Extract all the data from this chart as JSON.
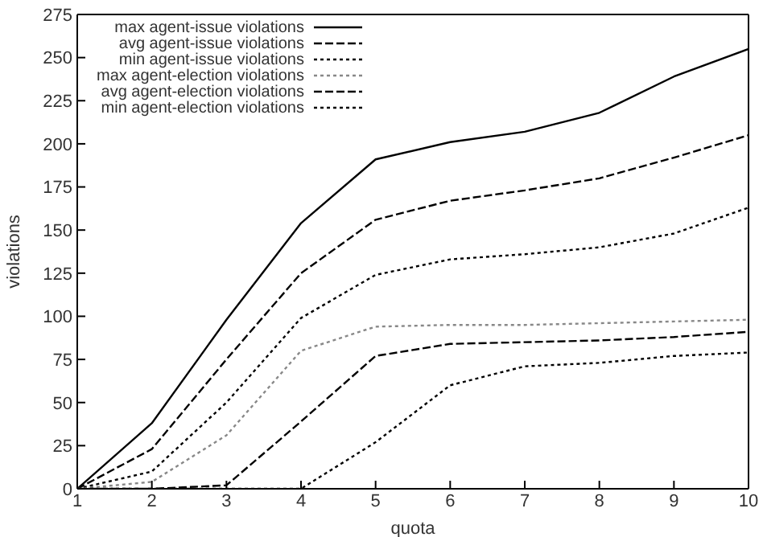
{
  "chart_data": {
    "type": "line",
    "xlabel": "quota",
    "ylabel": "violations",
    "x": [
      1,
      2,
      3,
      4,
      5,
      6,
      7,
      8,
      9,
      10
    ],
    "xlim": [
      1,
      10
    ],
    "xticks": [
      1,
      2,
      3,
      4,
      5,
      6,
      7,
      8,
      9,
      10
    ],
    "ylim": [
      0,
      275
    ],
    "yticks": [
      0,
      25,
      50,
      75,
      100,
      125,
      150,
      175,
      200,
      225,
      250,
      275
    ],
    "grid": false,
    "legend": "top left",
    "marker": "none",
    "series": [
      {
        "name": "max agent-issue violations",
        "color": "#000000",
        "line_style": "solid",
        "values": [
          0,
          38,
          98,
          154,
          191,
          201,
          207,
          218,
          239,
          255
        ]
      },
      {
        "name": "avg agent-issue violations",
        "color": "#000000",
        "line_style": "dashed",
        "values": [
          0,
          23,
          75,
          125,
          156,
          167,
          173,
          180,
          192,
          205
        ]
      },
      {
        "name": "min agent-issue violations",
        "color": "#000000",
        "line_style": "dotted",
        "values": [
          0,
          10,
          50,
          99,
          124,
          133,
          136,
          140,
          148,
          163
        ]
      },
      {
        "name": "max agent-election violations",
        "color": "#888888",
        "line_style": "dotted",
        "values": [
          0,
          4,
          31,
          80,
          94,
          95,
          95,
          96,
          97,
          98
        ]
      },
      {
        "name": "avg agent-election violations",
        "color": "#000000",
        "line_style": "dashed",
        "values": [
          0,
          0,
          2,
          39,
          77,
          84,
          85,
          86,
          88,
          91
        ]
      },
      {
        "name": "min agent-election violations",
        "color": "#000000",
        "line_style": "dotted",
        "values": [
          0,
          0,
          0,
          0,
          27,
          60,
          71,
          73,
          77,
          79
        ]
      }
    ]
  }
}
